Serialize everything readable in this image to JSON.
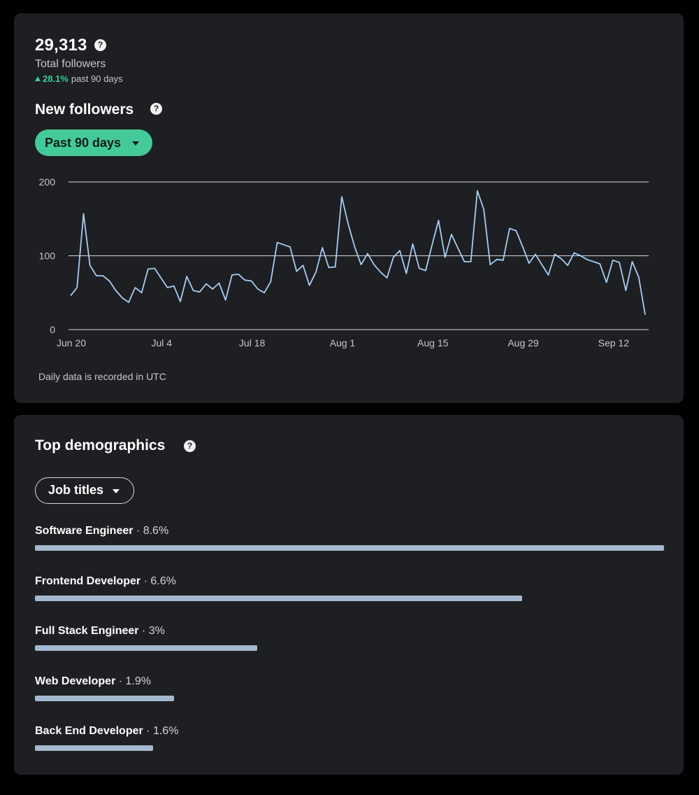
{
  "followers": {
    "total": "29,313",
    "total_label": "Total followers",
    "growth_pct": "28.1%",
    "growth_period": "past 90 days",
    "help_glyph": "?"
  },
  "new_followers": {
    "title": "New followers",
    "range_label": "Past 90 days",
    "footnote": "Daily data is recorded in UTC"
  },
  "demographics": {
    "title": "Top demographics",
    "filter_label": "Job titles",
    "items": [
      {
        "job": "Software Engineer",
        "value": " · 8.6%",
        "fraction": 1.0
      },
      {
        "job": "Frontend Developer",
        "value": " · 6.6%",
        "fraction": 0.774
      },
      {
        "job": "Full Stack Engineer",
        "value": " · 3%",
        "fraction": 0.353
      },
      {
        "job": "Web Developer",
        "value": " · 1.9%",
        "fraction": 0.221
      },
      {
        "job": "Back End Developer",
        "value": " · 1.6%",
        "fraction": 0.188
      }
    ]
  },
  "colors": {
    "accent_green": "#44c999",
    "line": "#a9cdf2",
    "bar": "#a5b8cf",
    "card": "#1d1f22"
  },
  "icons": [
    "help-icon",
    "chevron-down-icon",
    "trend-up-icon"
  ],
  "chart_data": {
    "type": "line",
    "x_tick_labels": [
      "Jun 20",
      "Jul 4",
      "Jul 18",
      "Aug 1",
      "Aug 15",
      "Aug 29",
      "Sep 12"
    ],
    "y_ticks": [
      0,
      100,
      200
    ],
    "ylim": [
      0,
      200
    ],
    "grid": "horizontal",
    "series": [
      {
        "values": [
          46,
          57,
          157,
          87,
          73,
          73,
          66,
          53,
          43,
          37,
          57,
          50,
          82,
          83,
          70,
          57,
          59,
          38,
          72,
          53,
          51,
          62,
          55,
          63,
          40,
          74,
          75,
          67,
          66,
          55,
          50,
          65,
          118,
          115,
          112,
          79,
          87,
          60,
          78,
          111,
          84,
          85,
          180,
          143,
          112,
          88,
          103,
          88,
          78,
          70,
          98,
          107,
          76,
          116,
          83,
          80,
          115,
          148,
          98,
          129,
          110,
          92,
          92,
          188,
          163,
          88,
          95,
          94,
          137,
          134,
          113,
          90,
          102,
          88,
          74,
          102,
          96,
          87,
          104,
          100,
          95,
          92,
          89,
          64,
          94,
          91,
          53,
          92,
          71,
          20
        ]
      }
    ]
  }
}
